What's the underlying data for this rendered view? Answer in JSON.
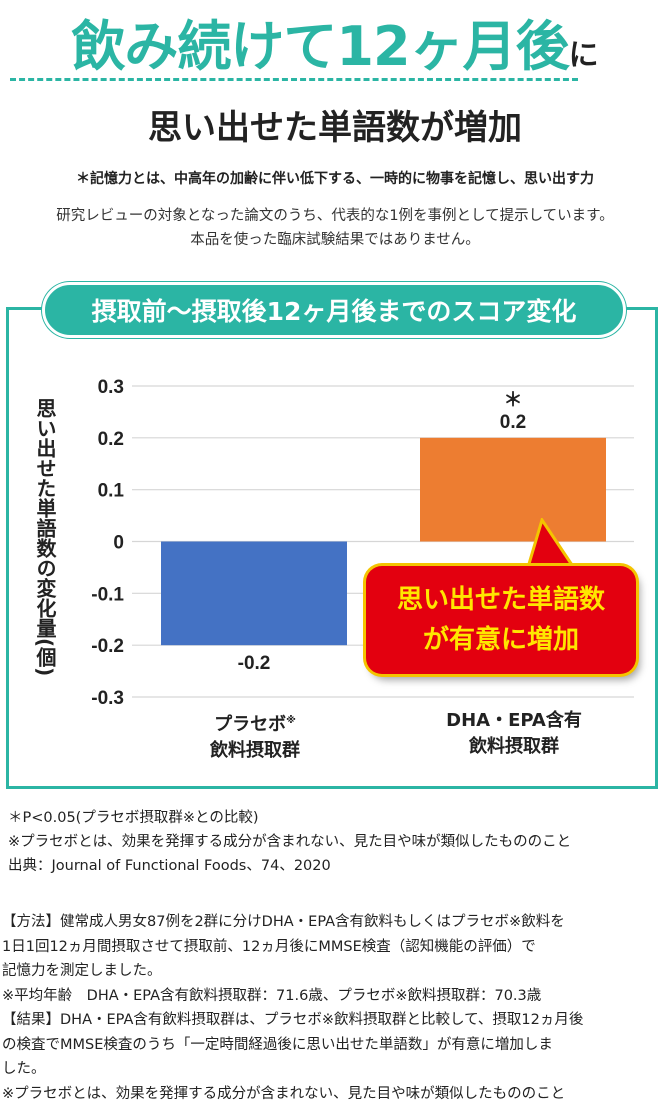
{
  "header": {
    "headline_main": "飲み続けて12ヶ月後",
    "headline_suffix": "に",
    "subheadline": "思い出せた単語数が増加",
    "memory_note": "＊記憶力とは、中高年の加齢に伴い低下する、一時的に物事を記憶し、思い出す力",
    "review_lines": [
      "研究レビューの対象となった論文のうち、代表的な1例を事例として提示しています。",
      "本品を使った臨床試験結果ではありません。"
    ]
  },
  "chart_data": {
    "type": "bar",
    "title": "摂取前〜摂取後12ヶ月後までのスコア変化",
    "ylabel": "思い出せた単語数の変化量(個)",
    "xlabel": "",
    "ylim": [
      -0.3,
      0.3
    ],
    "yticks": [
      "0.3",
      "0.2",
      "0.1",
      "0",
      "-0.1",
      "-0.2",
      "-0.3"
    ],
    "grid": true,
    "categories": [
      {
        "line1": "プラセボ",
        "sup": "※",
        "line2": "飲料摂取群"
      },
      {
        "line1": "DHA・EPA含有",
        "sup": "",
        "line2": "飲料摂取群"
      }
    ],
    "values": [
      -0.2,
      0.2
    ],
    "value_labels": [
      "-0.2",
      "0.2"
    ],
    "significance_marks": [
      "",
      "＊"
    ],
    "bar_colors": [
      "#4472c4",
      "#ed7d31"
    ],
    "callout_lines": [
      "思い出せた単語数",
      "が有意に増加"
    ]
  },
  "notes": [
    "＊P<0.05(プラセボ摂取群※との比較)",
    "※プラセボとは、効果を発揮する成分が含まれない、見た目や味が類似したもののこと",
    "出典：Journal of Functional Foods、74、2020"
  ],
  "method_lines": [
    "【方法】健常成人男女87例を2群に分けDHA・EPA含有飲料もしくはプラセボ※飲料を",
    "1日1回12ヵ月間摂取させて摂取前、12ヵ月後にMMSE検査（認知機能の評価）で",
    "記憶力を測定しました。",
    "※平均年齢　DHA・EPA含有飲料摂取群：71.6歳、プラセボ※飲料摂取群：70.3歳",
    "【結果】DHA・EPA含有飲料摂取群は、プラセボ※飲料摂取群と比較して、摂取12ヵ月後",
    "の検査でMMSE検査のうち「一定時間経過後に思い出せた単語数」が有意に増加しま",
    "した。",
    "※プラセボとは、効果を発揮する成分が含まれない、見た目や味が類似したもののこと"
  ]
}
